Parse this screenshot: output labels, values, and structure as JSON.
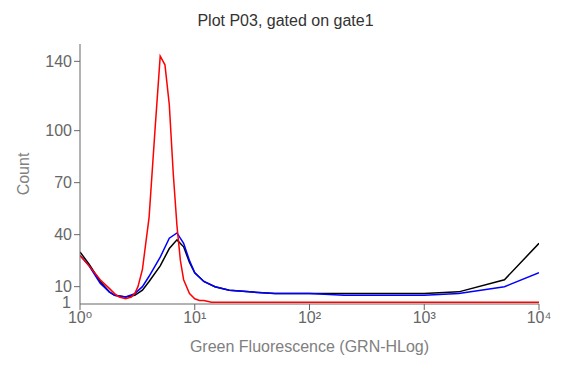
{
  "chart_data": {
    "type": "line",
    "title": "Plot P03, gated on gate1",
    "x_label": "Green Fluorescence (GRN-HLog)",
    "y_label": "Count",
    "log": "x",
    "grid": false,
    "xlim": [
      1.0,
      10000.0
    ],
    "ylim": [
      0,
      150
    ],
    "xticks": [
      {
        "value": 1,
        "label": "10⁰"
      },
      {
        "value": 10,
        "label": "10¹"
      },
      {
        "value": 100,
        "label": "10²"
      },
      {
        "value": 1000,
        "label": "10³"
      },
      {
        "value": 10000,
        "label": "10⁴"
      }
    ],
    "yticks": [
      10,
      40,
      70,
      100,
      140
    ],
    "annotations": [
      {
        "text": "1",
        "y": 1
      }
    ],
    "series": [
      {
        "color": "black",
        "x": [
          1.0,
          1.2,
          1.5,
          1.8,
          2.0,
          2.5,
          3.0,
          3.5,
          4.0,
          5.0,
          6.0,
          7.0,
          8.0,
          9.0,
          10.0,
          12.0,
          15.0,
          20.0,
          30.0,
          50.0,
          100.0,
          200.0,
          500.0,
          1000.0,
          2000.0,
          5000.0,
          10000.0
        ],
        "values": [
          30,
          23,
          13,
          7,
          5,
          4,
          5,
          8,
          13,
          22,
          32,
          37,
          33,
          24,
          18,
          13,
          10,
          8,
          7,
          6,
          6,
          6,
          6,
          6,
          7,
          14,
          35
        ]
      },
      {
        "color": "blue",
        "x": [
          1.0,
          1.2,
          1.5,
          1.8,
          2.0,
          2.5,
          3.0,
          3.5,
          4.0,
          5.0,
          6.0,
          7.0,
          8.0,
          9.0,
          10.0,
          12.0,
          15.0,
          20.0,
          30.0,
          50.0,
          100.0,
          200.0,
          500.0,
          1000.0,
          2000.0,
          5000.0,
          10000.0
        ],
        "values": [
          28,
          22,
          12,
          7,
          5,
          4,
          6,
          10,
          16,
          27,
          38,
          41,
          35,
          25,
          18,
          13,
          10,
          8,
          7,
          6,
          6,
          5,
          5,
          5,
          6,
          10,
          18
        ]
      },
      {
        "color": "red",
        "x": [
          1.0,
          1.2,
          1.5,
          1.8,
          2.0,
          2.2,
          2.5,
          2.8,
          3.0,
          3.2,
          3.5,
          4.0,
          4.5,
          5.0,
          5.5,
          6.0,
          6.5,
          7.0,
          7.5,
          8.0,
          9.0,
          10.0,
          11.0,
          12.0,
          14.0,
          16.0,
          20.0,
          30.0,
          50.0,
          100.0,
          300.0,
          1000.0,
          3000.0,
          10000.0
        ],
        "values": [
          28,
          22,
          14,
          9,
          6,
          4,
          3,
          4,
          6,
          10,
          20,
          50,
          100,
          143,
          138,
          115,
          75,
          45,
          25,
          14,
          6,
          3,
          2,
          2,
          1,
          1,
          1,
          1,
          1,
          1,
          1,
          1,
          1,
          1
        ]
      }
    ]
  }
}
